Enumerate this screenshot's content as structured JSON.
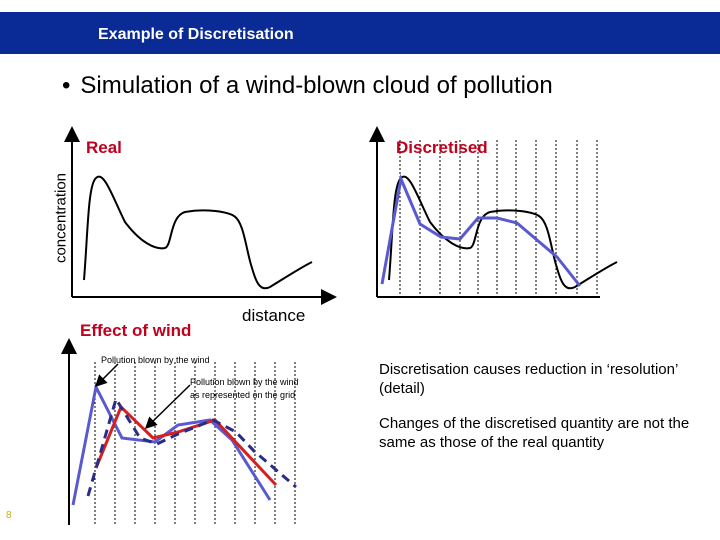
{
  "header": {
    "title": "Example of Discretisation",
    "bar_color": "#0a2a96"
  },
  "bullet": {
    "marker": "•",
    "text": "Simulation of a wind-blown cloud of pollution"
  },
  "panels": {
    "real_label": "Real",
    "discretised_label": "Discretised",
    "effect_label": "Effect of wind",
    "y_axis_label": "concentration",
    "x_axis_label": "distance",
    "label_color": "#c0001e"
  },
  "annotations": {
    "wind_real": "Pollution blown by the wind",
    "wind_grid_line1": "Pollution blown by the wind",
    "wind_grid_line2": "as represented on the grid"
  },
  "notes": {
    "note1": "Discretisation causes reduction in ‘resolution’ (detail)",
    "note2": "Changes of the discretised quantity are not the same as those of the real quantity"
  },
  "series_colors": {
    "discretised": "#5a5ad0",
    "wind_real": "#d42020",
    "wind_grid": "#2b2b88"
  },
  "footer": {
    "slide_number": "8"
  }
}
